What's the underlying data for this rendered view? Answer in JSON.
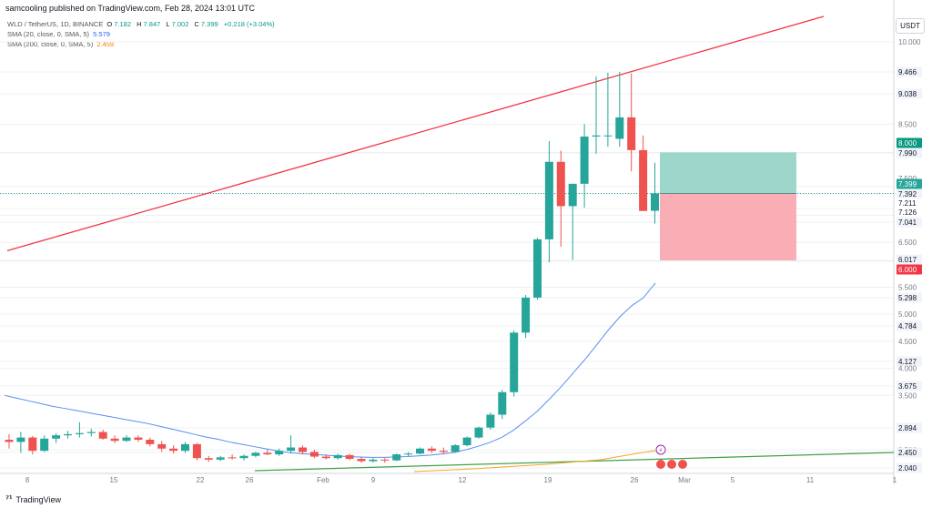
{
  "header": {
    "published": "samcooling published on TradingView.com, Feb 28, 2024 13:01 UTC"
  },
  "legend": {
    "symbol": "WLD / TetherUS, 1D, BINANCE",
    "ohlc": [
      {
        "k": "O",
        "v": "7.182"
      },
      {
        "k": "H",
        "v": "7.847"
      },
      {
        "k": "L",
        "v": "7.002"
      },
      {
        "k": "C",
        "v": "7.399"
      }
    ],
    "change": "+0.218 (+3.04%)",
    "sma20_label": "SMA (20, close, 0, SMA, 5)",
    "sma20_value": "5.579",
    "sma200_label": "SMA (200, close, 0, SMA, 5)",
    "sma200_value": "2.459"
  },
  "currency_button": "USDT",
  "footer": {
    "brand": "TradingView"
  },
  "colors": {
    "up": "#26a69a",
    "down": "#ef5350",
    "trendline": "#f23645",
    "sma20": "#5b8def",
    "sma200": "#f5a623",
    "support": "#43a047",
    "profit_zone": "#9dd6cb",
    "loss_zone": "#f9aeb6"
  },
  "chart_data": {
    "type": "candlestick",
    "x_tick_labels": [
      "8",
      "15",
      "22",
      "26",
      "Feb",
      "9",
      "12",
      "19",
      "26",
      "Mar",
      "5",
      "11",
      "1"
    ],
    "y_tick_labels": [
      "10.000",
      "9.466",
      "9.038",
      "8.500",
      "8.000",
      "7.990",
      "7.500",
      "7.399",
      "7.392",
      "7.211",
      "7.126",
      "7.041",
      "6.500",
      "6.017",
      "6.000",
      "5.500",
      "5.298",
      "5.000",
      "4.784",
      "4.500",
      "4.127",
      "4.000",
      "3.675",
      "3.500",
      "2.894",
      "2.500",
      "2.450",
      "2.040"
    ],
    "candles": [
      [
        2.68,
        2.78,
        2.52,
        2.64
      ],
      [
        2.64,
        2.82,
        2.44,
        2.72
      ],
      [
        2.72,
        2.75,
        2.4,
        2.48
      ],
      [
        2.48,
        2.76,
        2.46,
        2.7
      ],
      [
        2.7,
        2.8,
        2.62,
        2.76
      ],
      [
        2.76,
        2.84,
        2.7,
        2.78
      ],
      [
        2.78,
        3.0,
        2.72,
        2.8
      ],
      [
        2.8,
        2.88,
        2.74,
        2.82
      ],
      [
        2.82,
        2.86,
        2.68,
        2.7
      ],
      [
        2.7,
        2.76,
        2.62,
        2.66
      ],
      [
        2.66,
        2.76,
        2.64,
        2.72
      ],
      [
        2.72,
        2.76,
        2.64,
        2.68
      ],
      [
        2.68,
        2.72,
        2.56,
        2.6
      ],
      [
        2.6,
        2.66,
        2.46,
        2.52
      ],
      [
        2.52,
        2.58,
        2.42,
        2.48
      ],
      [
        2.48,
        2.64,
        2.44,
        2.6
      ],
      [
        2.6,
        2.62,
        2.24,
        2.3
      ],
      [
        2.3,
        2.36,
        2.2,
        2.26
      ],
      [
        2.26,
        2.36,
        2.22,
        2.32
      ],
      [
        2.32,
        2.4,
        2.26,
        2.3
      ],
      [
        2.3,
        2.4,
        2.24,
        2.36
      ],
      [
        2.36,
        2.46,
        2.32,
        2.44
      ],
      [
        2.44,
        2.5,
        2.38,
        2.4
      ],
      [
        2.4,
        2.52,
        2.36,
        2.48
      ],
      [
        2.48,
        2.76,
        2.42,
        2.54
      ],
      [
        2.54,
        2.58,
        2.4,
        2.46
      ],
      [
        2.46,
        2.5,
        2.3,
        2.34
      ],
      [
        2.34,
        2.4,
        2.26,
        2.3
      ],
      [
        2.3,
        2.42,
        2.26,
        2.38
      ],
      [
        2.38,
        2.42,
        2.24,
        2.28
      ],
      [
        2.28,
        2.34,
        2.18,
        2.22
      ],
      [
        2.22,
        2.3,
        2.18,
        2.26
      ],
      [
        2.26,
        2.3,
        2.18,
        2.24
      ],
      [
        2.24,
        2.42,
        2.22,
        2.4
      ],
      [
        2.4,
        2.46,
        2.34,
        2.42
      ],
      [
        2.42,
        2.54,
        2.4,
        2.52
      ],
      [
        2.52,
        2.56,
        2.44,
        2.48
      ],
      [
        2.48,
        2.54,
        2.4,
        2.46
      ],
      [
        2.46,
        2.6,
        2.44,
        2.58
      ],
      [
        2.58,
        2.74,
        2.56,
        2.72
      ],
      [
        2.72,
        2.92,
        2.7,
        2.9
      ],
      [
        2.9,
        3.18,
        2.86,
        3.14
      ],
      [
        3.14,
        3.6,
        3.06,
        3.56
      ],
      [
        3.56,
        4.7,
        3.48,
        4.66
      ],
      [
        4.66,
        5.35,
        4.56,
        5.3
      ],
      [
        5.3,
        6.62,
        5.26,
        6.58
      ],
      [
        6.58,
        8.2,
        5.98,
        7.86
      ],
      [
        7.86,
        8.03,
        6.38,
        7.24
      ],
      [
        7.24,
        7.54,
        6.03,
        7.54
      ],
      [
        7.54,
        8.5,
        7.22,
        8.28
      ],
      [
        8.28,
        9.38,
        7.98,
        8.3
      ],
      [
        8.3,
        9.45,
        8.1,
        8.3
      ],
      [
        8.24,
        9.466,
        8.1,
        8.62
      ],
      [
        8.62,
        9.44,
        7.72,
        8.04
      ],
      [
        8.04,
        8.3,
        7.22,
        7.18
      ],
      [
        7.182,
        7.847,
        7.002,
        7.399
      ]
    ],
    "sma20": [
      3.5,
      3.45,
      3.4,
      3.35,
      3.3,
      3.26,
      3.22,
      3.18,
      3.14,
      3.1,
      3.06,
      3.02,
      2.98,
      2.93,
      2.88,
      2.83,
      2.78,
      2.73,
      2.69,
      2.64,
      2.6,
      2.56,
      2.52,
      2.48,
      2.45,
      2.42,
      2.4,
      2.38,
      2.36,
      2.34,
      2.33,
      2.32,
      2.32,
      2.33,
      2.34,
      2.36,
      2.38,
      2.41,
      2.45,
      2.5,
      2.56,
      2.63,
      2.72,
      2.85,
      3.02,
      3.2,
      3.42,
      3.65,
      3.9,
      4.15,
      4.42,
      4.7,
      4.95,
      5.15,
      5.3,
      5.579
    ],
    "sma200": [
      2.18,
      2.19,
      2.21,
      2.23,
      2.25,
      2.28,
      2.31,
      2.34,
      2.37,
      2.4,
      2.43,
      2.459
    ],
    "trendline": [
      [
        0,
        6.3
      ],
      [
        50,
        9.4
      ]
    ],
    "support_line": [
      [
        10,
        2.17
      ],
      [
        79,
        2.48
      ]
    ],
    "position": {
      "entry": 7.399,
      "target": 8.0,
      "stop": 6.017
    }
  }
}
